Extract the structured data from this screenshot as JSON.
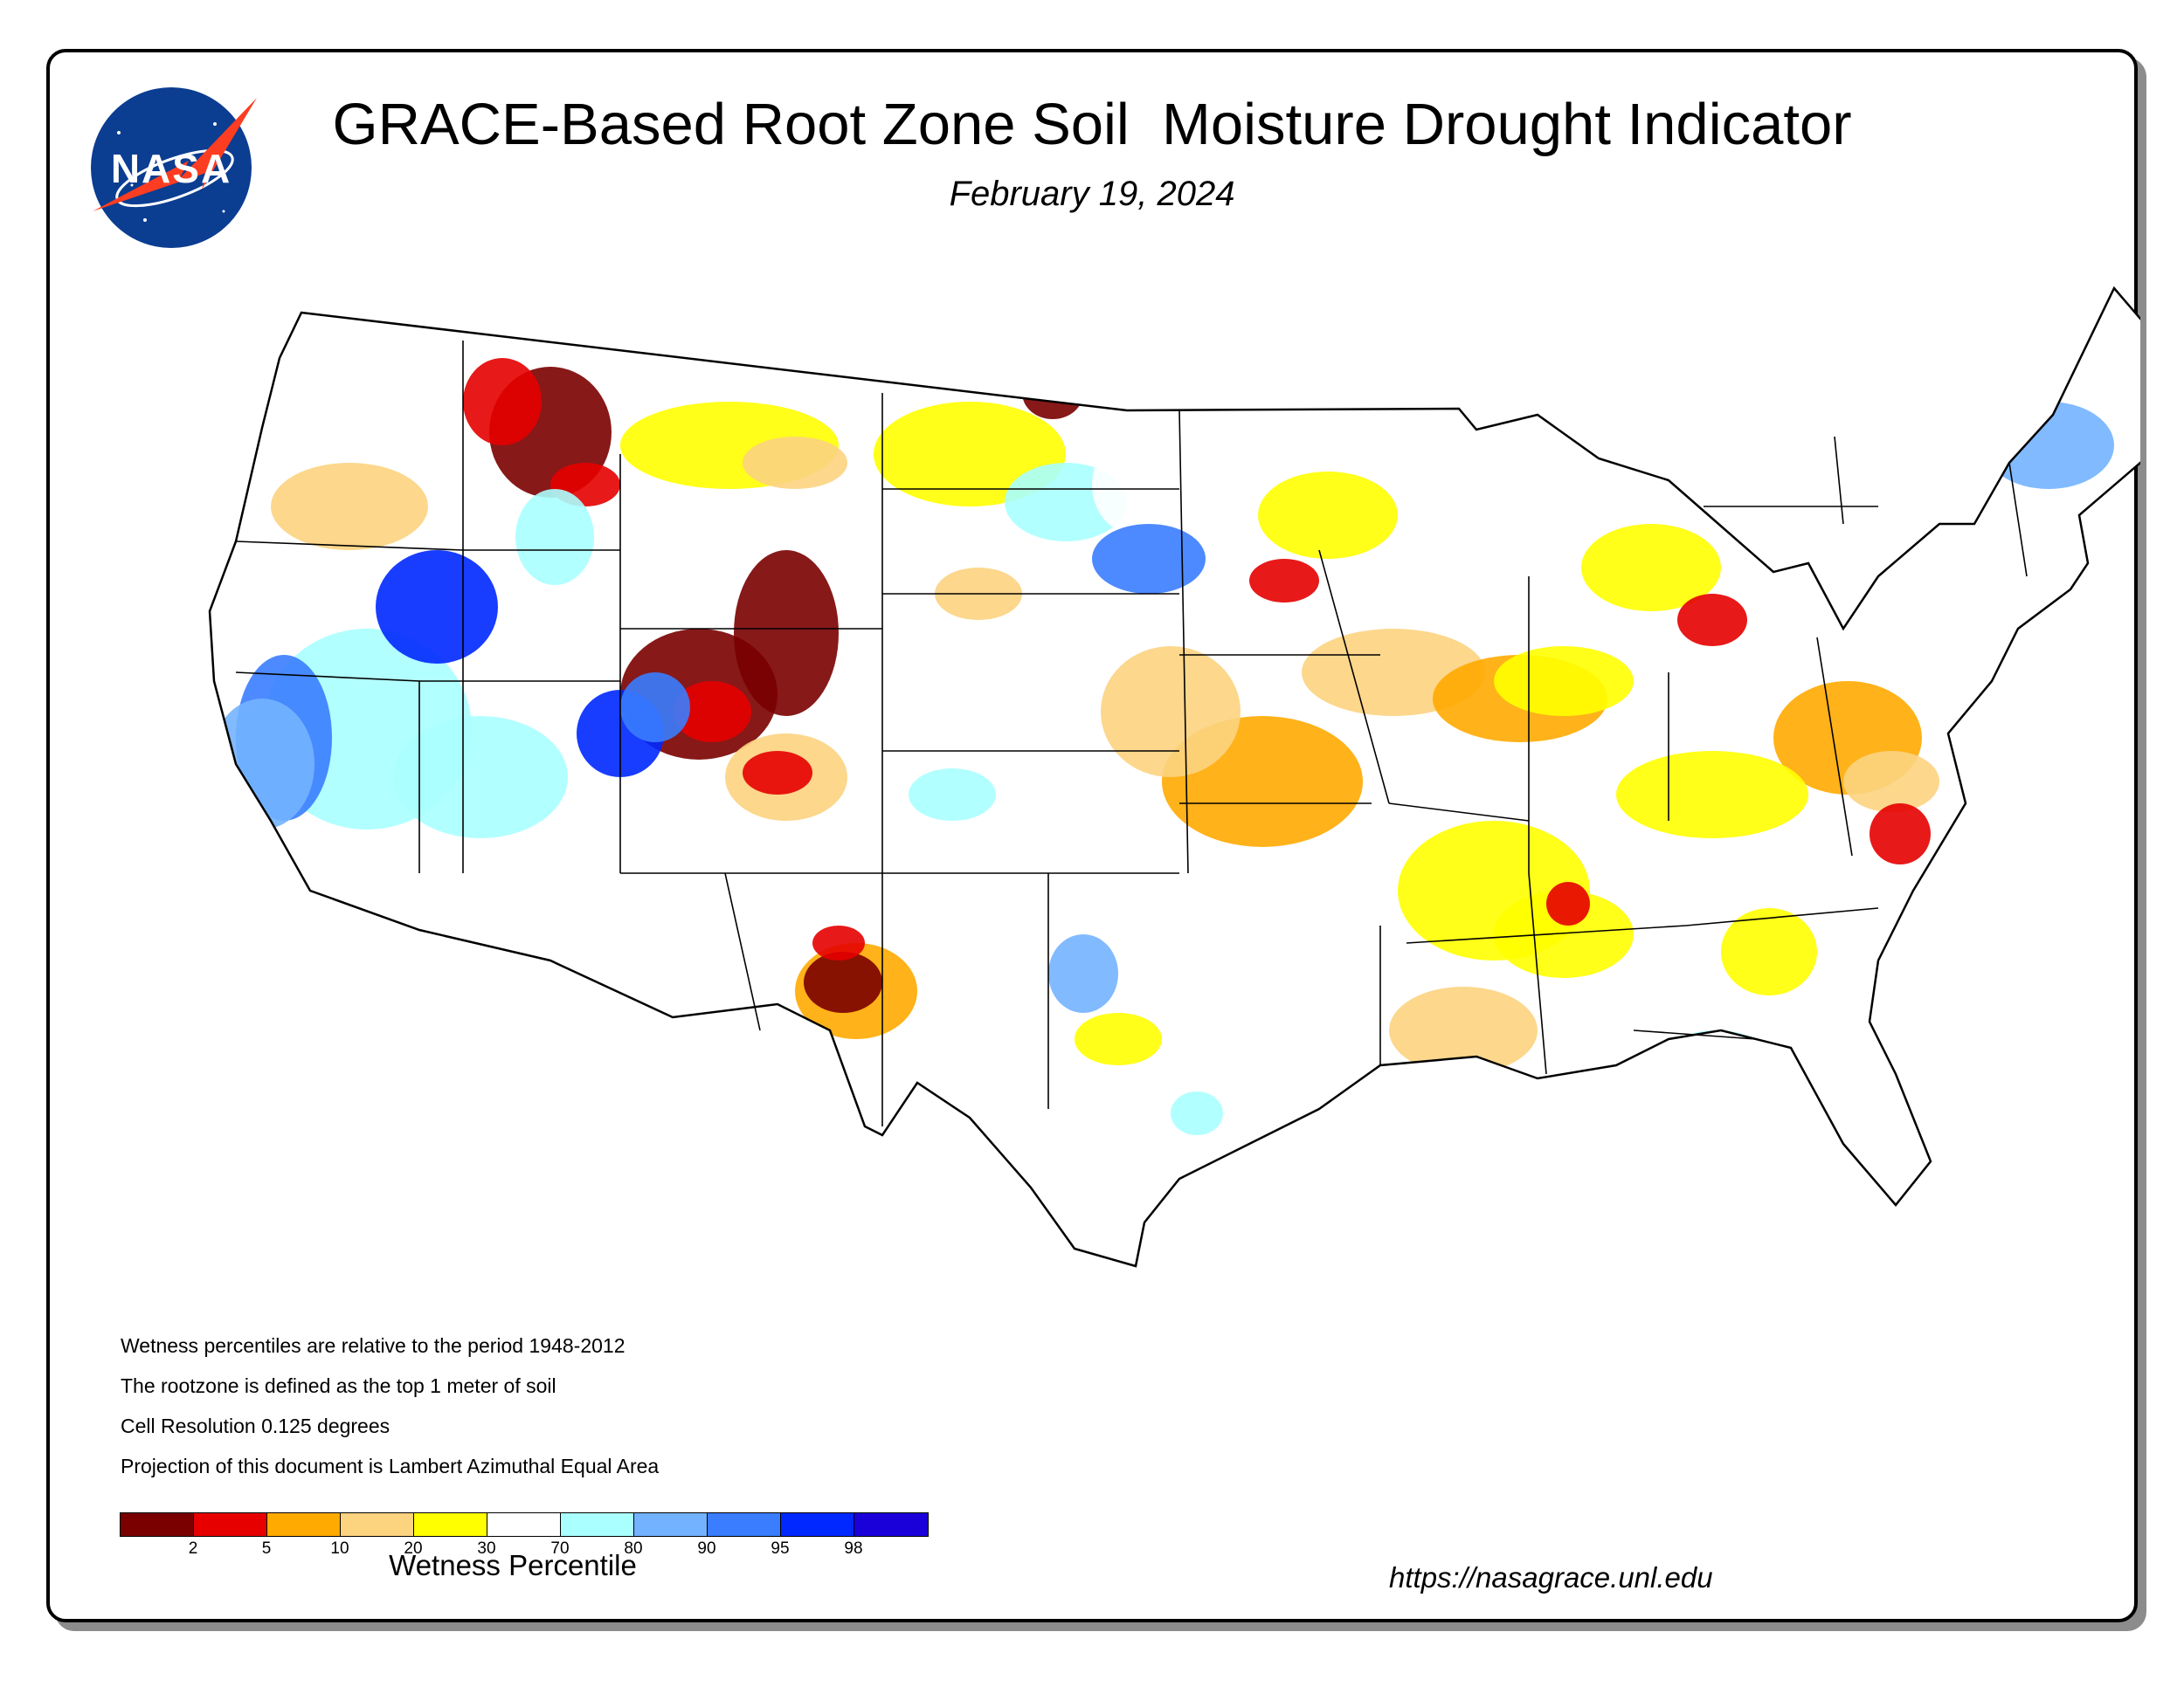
{
  "header": {
    "title": "GRACE-Based Root Zone Soil  Moisture Drought Indicator",
    "date": "February 19, 2024"
  },
  "logo": {
    "text": "NASA",
    "icon": "nasa-meatball-logo"
  },
  "notes": [
    "Wetness percentiles are relative to the period 1948-2012",
    "The rootzone is defined as the top 1 meter of soil",
    "Cell Resolution 0.125 degrees",
    "Projection of this document is Lambert Azimuthal Equal Area"
  ],
  "legend": {
    "label": "Wetness Percentile",
    "ticks": [
      "2",
      "5",
      "10",
      "20",
      "30",
      "70",
      "80",
      "90",
      "95",
      "98"
    ],
    "colors": [
      "#7a0000",
      "#e60000",
      "#ffaa00",
      "#fcd37f",
      "#ffff00",
      "#ffffff",
      "#aaffff",
      "#73b2ff",
      "#3a7dff",
      "#0028ff",
      "#1a00d9"
    ]
  },
  "footer": {
    "url": "https://nasagrace.unl.edu"
  }
}
